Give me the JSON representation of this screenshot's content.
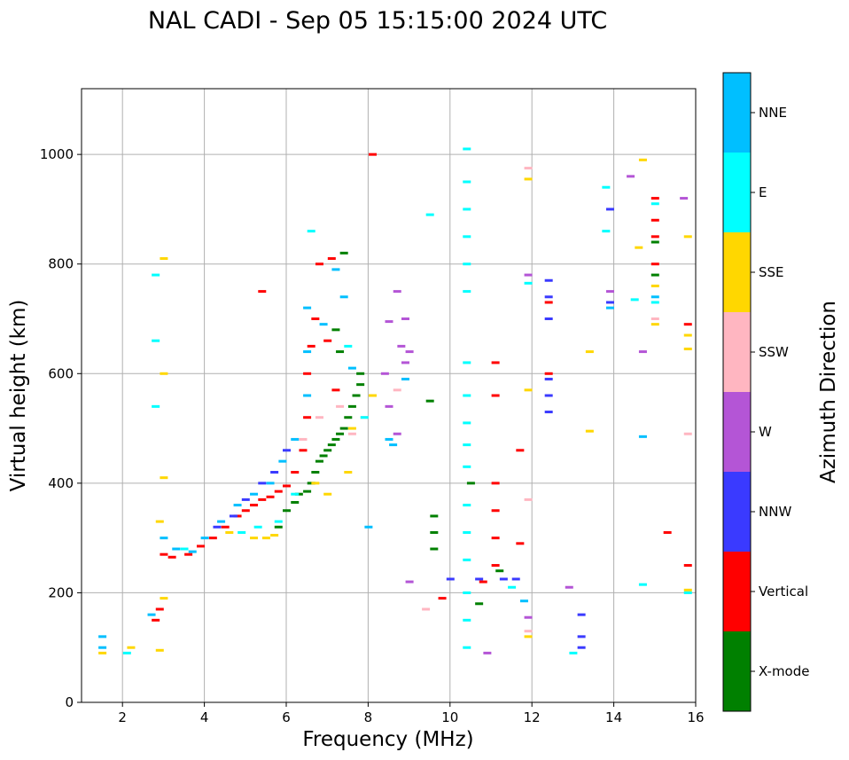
{
  "chart_data": {
    "type": "scatter",
    "title": "NAL CADI - Sep 05 15:15:00 2024 UTC",
    "xlabel": "Frequency (MHz)",
    "ylabel": "Virtual height (km)",
    "xlim": [
      1,
      16
    ],
    "ylim": [
      0,
      1120
    ],
    "xticks": [
      2,
      4,
      6,
      8,
      10,
      12,
      14,
      16
    ],
    "xtick_labels": [
      "2",
      "4",
      "6",
      "8",
      "10",
      "12",
      "14",
      "16"
    ],
    "yticks": [
      0,
      200,
      400,
      600,
      800,
      1000
    ],
    "ytick_labels": [
      "0",
      "200",
      "400",
      "600",
      "800",
      "1000"
    ],
    "grid": true,
    "colorbar": {
      "label": "Azimuth Direction",
      "categories": [
        {
          "name": "X-mode",
          "color": "#008000"
        },
        {
          "name": "Vertical",
          "color": "#ff0000"
        },
        {
          "name": "NNW",
          "color": "#3a3aff"
        },
        {
          "name": "W",
          "color": "#b455d6"
        },
        {
          "name": "SSW",
          "color": "#ffb6c1"
        },
        {
          "name": "SSE",
          "color": "#ffd700"
        },
        {
          "name": "E",
          "color": "#00ffff"
        },
        {
          "name": "NNE",
          "color": "#00bfff"
        }
      ]
    },
    "series": [
      {
        "name": "X-mode",
        "points": [
          [
            5.8,
            320
          ],
          [
            6.0,
            350
          ],
          [
            6.2,
            365
          ],
          [
            6.3,
            380
          ],
          [
            6.5,
            385
          ],
          [
            6.6,
            400
          ],
          [
            6.7,
            420
          ],
          [
            6.8,
            440
          ],
          [
            6.9,
            450
          ],
          [
            7.0,
            460
          ],
          [
            7.1,
            470
          ],
          [
            7.2,
            480
          ],
          [
            7.3,
            490
          ],
          [
            7.4,
            500
          ],
          [
            7.5,
            520
          ],
          [
            7.6,
            540
          ],
          [
            7.7,
            560
          ],
          [
            7.8,
            580
          ],
          [
            7.8,
            600
          ],
          [
            7.3,
            640
          ],
          [
            7.2,
            680
          ],
          [
            7.4,
            820
          ],
          [
            9.6,
            340
          ],
          [
            9.6,
            310
          ],
          [
            9.6,
            280
          ],
          [
            9.5,
            550
          ],
          [
            10.5,
            400
          ],
          [
            10.7,
            180
          ],
          [
            11.2,
            240
          ],
          [
            15.0,
            840
          ],
          [
            15.0,
            780
          ]
        ]
      },
      {
        "name": "Vertical",
        "points": [
          [
            2.8,
            150
          ],
          [
            2.9,
            170
          ],
          [
            3.0,
            270
          ],
          [
            3.2,
            265
          ],
          [
            3.6,
            270
          ],
          [
            3.9,
            285
          ],
          [
            4.2,
            300
          ],
          [
            4.5,
            320
          ],
          [
            4.8,
            340
          ],
          [
            5.0,
            350
          ],
          [
            5.2,
            360
          ],
          [
            5.4,
            370
          ],
          [
            5.6,
            375
          ],
          [
            5.8,
            385
          ],
          [
            6.0,
            395
          ],
          [
            6.2,
            420
          ],
          [
            6.4,
            460
          ],
          [
            6.5,
            520
          ],
          [
            6.5,
            600
          ],
          [
            6.6,
            650
          ],
          [
            6.7,
            700
          ],
          [
            6.8,
            800
          ],
          [
            7.1,
            810
          ],
          [
            7.0,
            660
          ],
          [
            7.2,
            570
          ],
          [
            5.4,
            750
          ],
          [
            8.1,
            1000
          ],
          [
            11.1,
            400
          ],
          [
            11.1,
            350
          ],
          [
            11.1,
            300
          ],
          [
            11.1,
            250
          ],
          [
            11.1,
            620
          ],
          [
            11.1,
            560
          ],
          [
            11.7,
            290
          ],
          [
            11.7,
            460
          ],
          [
            12.4,
            600
          ],
          [
            12.4,
            730
          ],
          [
            15.0,
            920
          ],
          [
            15.0,
            880
          ],
          [
            15.0,
            850
          ],
          [
            15.0,
            800
          ],
          [
            15.3,
            310
          ],
          [
            15.8,
            250
          ],
          [
            15.8,
            690
          ],
          [
            10.8,
            220
          ],
          [
            9.8,
            190
          ]
        ]
      },
      {
        "name": "NNW",
        "points": [
          [
            4.3,
            320
          ],
          [
            4.7,
            340
          ],
          [
            5.0,
            370
          ],
          [
            5.4,
            400
          ],
          [
            5.7,
            420
          ],
          [
            6.0,
            460
          ],
          [
            10.0,
            225
          ],
          [
            10.7,
            225
          ],
          [
            11.3,
            225
          ],
          [
            11.6,
            225
          ],
          [
            12.4,
            530
          ],
          [
            12.4,
            560
          ],
          [
            12.4,
            590
          ],
          [
            12.4,
            700
          ],
          [
            12.4,
            740
          ],
          [
            12.4,
            770
          ],
          [
            13.2,
            100
          ],
          [
            13.2,
            120
          ],
          [
            13.2,
            160
          ],
          [
            13.9,
            900
          ],
          [
            13.9,
            730
          ]
        ]
      },
      {
        "name": "W",
        "points": [
          [
            8.4,
            600
          ],
          [
            8.5,
            695
          ],
          [
            8.7,
            750
          ],
          [
            8.8,
            650
          ],
          [
            8.9,
            700
          ],
          [
            8.9,
            620
          ],
          [
            9.0,
            640
          ],
          [
            8.7,
            490
          ],
          [
            8.5,
            540
          ],
          [
            9.0,
            220
          ],
          [
            10.9,
            90
          ],
          [
            11.9,
            155
          ],
          [
            11.9,
            780
          ],
          [
            12.9,
            210
          ],
          [
            14.4,
            960
          ],
          [
            14.7,
            640
          ],
          [
            15.7,
            920
          ],
          [
            13.9,
            750
          ]
        ]
      },
      {
        "name": "SSW",
        "points": [
          [
            6.4,
            480
          ],
          [
            6.8,
            520
          ],
          [
            7.3,
            540
          ],
          [
            7.6,
            490
          ],
          [
            7.9,
            520
          ],
          [
            8.7,
            570
          ],
          [
            9.4,
            170
          ],
          [
            11.9,
            370
          ],
          [
            11.9,
            975
          ],
          [
            11.9,
            130
          ],
          [
            15.8,
            490
          ],
          [
            15.0,
            700
          ]
        ]
      },
      {
        "name": "SSE",
        "points": [
          [
            1.5,
            90
          ],
          [
            2.2,
            100
          ],
          [
            2.9,
            95
          ],
          [
            3.0,
            410
          ],
          [
            3.0,
            600
          ],
          [
            3.0,
            810
          ],
          [
            2.9,
            330
          ],
          [
            3.0,
            190
          ],
          [
            4.6,
            310
          ],
          [
            5.2,
            300
          ],
          [
            5.5,
            300
          ],
          [
            5.7,
            305
          ],
          [
            6.7,
            400
          ],
          [
            7.0,
            380
          ],
          [
            7.5,
            420
          ],
          [
            7.6,
            500
          ],
          [
            8.1,
            560
          ],
          [
            11.9,
            570
          ],
          [
            11.9,
            120
          ],
          [
            11.9,
            955
          ],
          [
            13.4,
            495
          ],
          [
            13.4,
            640
          ],
          [
            14.6,
            830
          ],
          [
            14.7,
            990
          ],
          [
            15.0,
            690
          ],
          [
            15.0,
            760
          ],
          [
            15.8,
            850
          ],
          [
            15.8,
            670
          ],
          [
            15.8,
            645
          ],
          [
            15.8,
            205
          ]
        ]
      },
      {
        "name": "E",
        "points": [
          [
            2.1,
            90
          ],
          [
            2.8,
            780
          ],
          [
            2.8,
            660
          ],
          [
            2.8,
            540
          ],
          [
            3.5,
            280
          ],
          [
            4.9,
            310
          ],
          [
            5.3,
            320
          ],
          [
            5.8,
            330
          ],
          [
            6.2,
            380
          ],
          [
            6.6,
            860
          ],
          [
            7.5,
            650
          ],
          [
            7.9,
            520
          ],
          [
            9.5,
            890
          ],
          [
            10.4,
            1010
          ],
          [
            10.4,
            950
          ],
          [
            10.4,
            900
          ],
          [
            10.4,
            850
          ],
          [
            10.4,
            800
          ],
          [
            10.4,
            750
          ],
          [
            10.4,
            620
          ],
          [
            10.4,
            560
          ],
          [
            10.4,
            510
          ],
          [
            10.4,
            470
          ],
          [
            10.4,
            430
          ],
          [
            10.4,
            360
          ],
          [
            10.4,
            310
          ],
          [
            10.4,
            260
          ],
          [
            10.4,
            200
          ],
          [
            10.4,
            150
          ],
          [
            10.4,
            100
          ],
          [
            11.5,
            210
          ],
          [
            11.9,
            765
          ],
          [
            13.0,
            90
          ],
          [
            13.8,
            860
          ],
          [
            13.8,
            940
          ],
          [
            14.5,
            735
          ],
          [
            14.7,
            215
          ],
          [
            15.0,
            730
          ],
          [
            15.0,
            910
          ],
          [
            15.8,
            200
          ]
        ]
      },
      {
        "name": "NNE",
        "points": [
          [
            1.5,
            100
          ],
          [
            1.5,
            120
          ],
          [
            2.7,
            160
          ],
          [
            3.0,
            300
          ],
          [
            3.3,
            280
          ],
          [
            3.7,
            275
          ],
          [
            4.0,
            300
          ],
          [
            4.4,
            330
          ],
          [
            4.8,
            360
          ],
          [
            5.2,
            380
          ],
          [
            5.6,
            400
          ],
          [
            5.9,
            440
          ],
          [
            6.2,
            480
          ],
          [
            6.5,
            560
          ],
          [
            6.5,
            640
          ],
          [
            6.5,
            720
          ],
          [
            6.9,
            690
          ],
          [
            7.2,
            790
          ],
          [
            7.4,
            740
          ],
          [
            7.6,
            610
          ],
          [
            8.0,
            320
          ],
          [
            8.9,
            590
          ],
          [
            8.5,
            480
          ],
          [
            8.6,
            470
          ],
          [
            11.8,
            185
          ],
          [
            13.9,
            720
          ],
          [
            14.7,
            485
          ],
          [
            15.0,
            740
          ]
        ]
      }
    ]
  }
}
